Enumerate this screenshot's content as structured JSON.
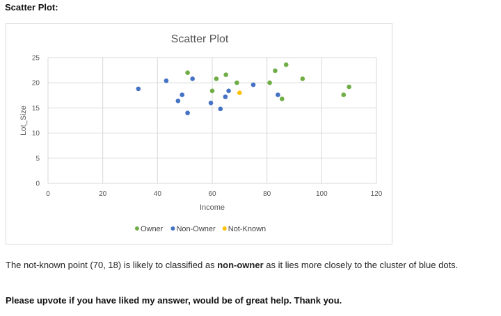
{
  "heading": "Scatter Plot:",
  "answer": {
    "part1": "The not-known point (70, 18) is likely to classified as ",
    "emphasis": "non-owner",
    "part2": " as it lies more closely to the cluster of blue dots."
  },
  "closing": "Please upvote if you have liked my answer, would be of great help. Thank you.",
  "chart_data": {
    "type": "scatter",
    "title": "Scatter Plot",
    "xlabel": "Income",
    "ylabel": "Lot_Size",
    "xlim": [
      0,
      120
    ],
    "ylim": [
      0,
      25
    ],
    "xticks": [
      "0",
      "20",
      "40",
      "60",
      "80",
      "100",
      "120"
    ],
    "yticks": [
      "0",
      "5",
      "10",
      "15",
      "20",
      "25"
    ],
    "grid": true,
    "legend": "bottom",
    "series": [
      {
        "name": "Owner",
        "color": "#70ad47",
        "points": [
          [
            51,
            22
          ],
          [
            60,
            18.4
          ],
          [
            61.5,
            20.8
          ],
          [
            65,
            21.6
          ],
          [
            69,
            20
          ],
          [
            81,
            20
          ],
          [
            83,
            22.4
          ],
          [
            85.5,
            16.8
          ],
          [
            87,
            23.6
          ],
          [
            93,
            20.8
          ],
          [
            108,
            17.6
          ],
          [
            110,
            19.2
          ]
        ]
      },
      {
        "name": "Non-Owner",
        "color": "#4472c4",
        "points": [
          [
            33,
            18.8
          ],
          [
            43.2,
            20.4
          ],
          [
            47.5,
            16.4
          ],
          [
            49,
            17.6
          ],
          [
            51,
            14
          ],
          [
            52.8,
            20.8
          ],
          [
            59.5,
            16
          ],
          [
            63,
            14.8
          ],
          [
            64.8,
            17.2
          ],
          [
            66,
            18.4
          ],
          [
            75,
            19.6
          ],
          [
            84,
            17.6
          ]
        ]
      },
      {
        "name": "Not-Known",
        "color": "#ffc000",
        "points": [
          [
            70,
            18
          ]
        ]
      }
    ]
  }
}
